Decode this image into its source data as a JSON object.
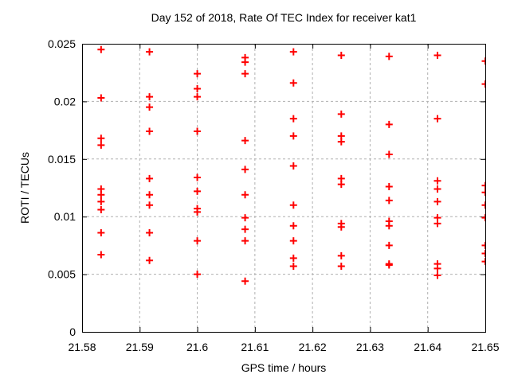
{
  "chart_data": {
    "type": "scatter",
    "title": "Day 152 of 2018, Rate Of TEC Index for receiver kat1",
    "xlabel": "GPS time / hours",
    "ylabel": "ROTI / TECUs",
    "xlim": [
      21.58,
      21.65
    ],
    "ylim": [
      0,
      0.025
    ],
    "grid": true,
    "legend": "none",
    "xticks": {
      "values": [
        21.58,
        21.59,
        21.6,
        21.61,
        21.62,
        21.63,
        21.64,
        21.65
      ],
      "labels": [
        "21.58",
        "21.59",
        "21.6",
        "21.61",
        "21.62",
        "21.63",
        "21.64",
        "21.65"
      ]
    },
    "yticks": {
      "values": [
        0,
        0.005,
        0.01,
        0.015,
        0.02,
        0.025
      ],
      "labels": [
        "0",
        "0.005",
        "0.01",
        "0.015",
        "0.02",
        "0.025"
      ]
    },
    "marker": {
      "symbol": "plus",
      "color": "#ff0000",
      "size": 9
    },
    "grid_color": "#b0b0b0",
    "axis_color": "#000000",
    "background_color": "#ffffff",
    "points": [
      [
        21.5833,
        0.0245
      ],
      [
        21.5833,
        0.0203
      ],
      [
        21.5833,
        0.0168
      ],
      [
        21.5833,
        0.0162
      ],
      [
        21.5833,
        0.0124
      ],
      [
        21.5833,
        0.0119
      ],
      [
        21.5833,
        0.0113
      ],
      [
        21.5833,
        0.0106
      ],
      [
        21.5833,
        0.0086
      ],
      [
        21.5833,
        0.0067
      ],
      [
        21.5917,
        0.0243
      ],
      [
        21.5917,
        0.0204
      ],
      [
        21.5917,
        0.0195
      ],
      [
        21.5917,
        0.0174
      ],
      [
        21.5917,
        0.0133
      ],
      [
        21.5917,
        0.0119
      ],
      [
        21.5917,
        0.011
      ],
      [
        21.5917,
        0.0086
      ],
      [
        21.5917,
        0.0062
      ],
      [
        21.6,
        0.0224
      ],
      [
        21.6,
        0.0211
      ],
      [
        21.6,
        0.0204
      ],
      [
        21.6,
        0.0174
      ],
      [
        21.6,
        0.0134
      ],
      [
        21.6,
        0.0122
      ],
      [
        21.6,
        0.0107
      ],
      [
        21.6,
        0.0104
      ],
      [
        21.6,
        0.0079
      ],
      [
        21.6,
        0.005
      ],
      [
        21.6083,
        0.0238
      ],
      [
        21.6083,
        0.0234
      ],
      [
        21.6083,
        0.0224
      ],
      [
        21.6083,
        0.0166
      ],
      [
        21.6083,
        0.0141
      ],
      [
        21.6083,
        0.0119
      ],
      [
        21.6083,
        0.0099
      ],
      [
        21.6083,
        0.0089
      ],
      [
        21.6083,
        0.0079
      ],
      [
        21.6083,
        0.0044
      ],
      [
        21.6167,
        0.0243
      ],
      [
        21.6167,
        0.0216
      ],
      [
        21.6167,
        0.0185
      ],
      [
        21.6167,
        0.017
      ],
      [
        21.6167,
        0.0144
      ],
      [
        21.6167,
        0.011
      ],
      [
        21.6167,
        0.0092
      ],
      [
        21.6167,
        0.0079
      ],
      [
        21.6167,
        0.0064
      ],
      [
        21.6167,
        0.0057
      ],
      [
        21.625,
        0.024
      ],
      [
        21.625,
        0.0189
      ],
      [
        21.625,
        0.017
      ],
      [
        21.625,
        0.0165
      ],
      [
        21.625,
        0.0133
      ],
      [
        21.625,
        0.0128
      ],
      [
        21.625,
        0.0094
      ],
      [
        21.625,
        0.0091
      ],
      [
        21.625,
        0.0066
      ],
      [
        21.625,
        0.0057
      ],
      [
        21.6333,
        0.0239
      ],
      [
        21.6333,
        0.018
      ],
      [
        21.6333,
        0.0154
      ],
      [
        21.6333,
        0.0126
      ],
      [
        21.6333,
        0.0114
      ],
      [
        21.6333,
        0.0096
      ],
      [
        21.6333,
        0.0092
      ],
      [
        21.6333,
        0.0075
      ],
      [
        21.6333,
        0.0059
      ],
      [
        21.6333,
        0.0058
      ],
      [
        21.6417,
        0.024
      ],
      [
        21.6417,
        0.0185
      ],
      [
        21.6417,
        0.0131
      ],
      [
        21.6417,
        0.0124
      ],
      [
        21.6417,
        0.0113
      ],
      [
        21.6417,
        0.0099
      ],
      [
        21.6417,
        0.0094
      ],
      [
        21.6417,
        0.0059
      ],
      [
        21.6417,
        0.0055
      ],
      [
        21.6417,
        0.0049
      ],
      [
        21.65,
        0.0235
      ],
      [
        21.65,
        0.0215
      ],
      [
        21.65,
        0.0127
      ],
      [
        21.65,
        0.0121
      ],
      [
        21.65,
        0.011
      ],
      [
        21.65,
        0.0099
      ],
      [
        21.65,
        0.0075
      ],
      [
        21.65,
        0.0068
      ],
      [
        21.65,
        0.0061
      ]
    ]
  }
}
